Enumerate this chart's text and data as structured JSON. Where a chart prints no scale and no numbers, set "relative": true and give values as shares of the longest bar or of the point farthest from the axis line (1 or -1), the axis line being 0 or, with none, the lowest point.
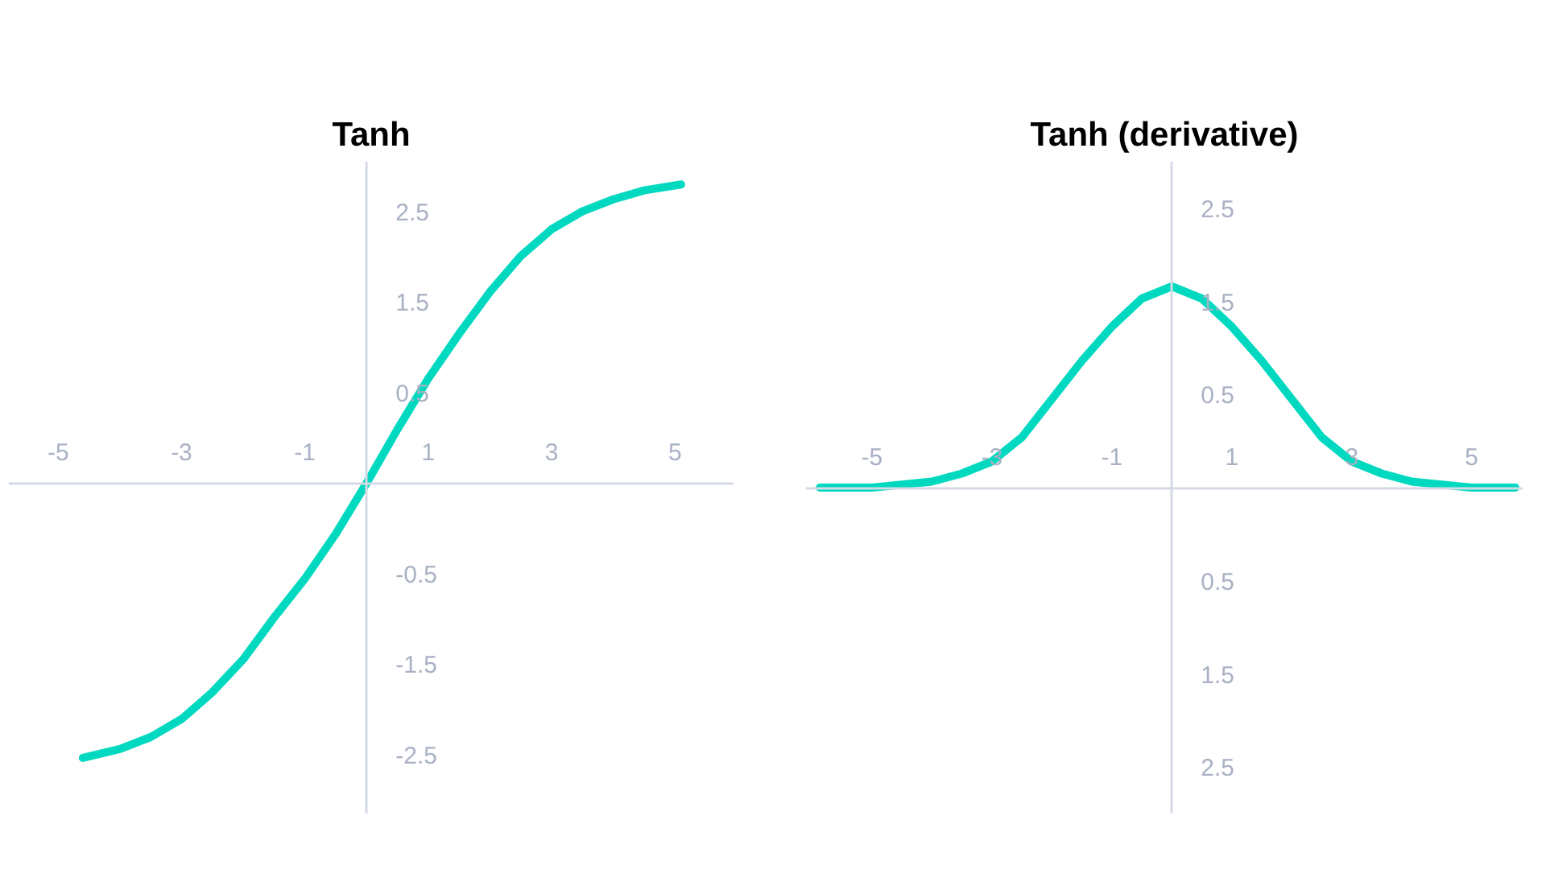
{
  "chart_data": [
    {
      "type": "line",
      "title": "Tanh",
      "relative": true,
      "xlim": [
        -5.8,
        5.95
      ],
      "xticks": [
        -5,
        -3,
        -1,
        1,
        3,
        5
      ],
      "annotations": [
        "2.5",
        "1.5",
        "0.5",
        "-0.5",
        "-1.5",
        "-2.5"
      ],
      "series": [
        {
          "color": "#00d9c0",
          "x": [
            -4.6,
            -4,
            -3.5,
            -3,
            -2.5,
            -2,
            -1.5,
            -1,
            -0.5,
            0,
            0.5,
            1,
            1.5,
            2,
            2.5,
            3,
            3.5,
            4,
            4.5,
            5.1
          ],
          "values": [
            -0.92,
            -0.89,
            -0.85,
            -0.79,
            -0.7,
            -0.59,
            -0.45,
            -0.32,
            -0.17,
            0,
            0.18,
            0.35,
            0.5,
            0.64,
            0.76,
            0.85,
            0.91,
            0.95,
            0.98,
            1
          ]
        }
      ]
    },
    {
      "type": "line",
      "title": "Tanh (derivative)",
      "relative": true,
      "xlim": [
        -6.1,
        5.85
      ],
      "xticks": [
        -5,
        -3,
        -1,
        1,
        3,
        5
      ],
      "annotations": [
        "2.5",
        "1.5",
        "0.5",
        "0.5",
        "1.5",
        "2.5"
      ],
      "series": [
        {
          "color": "#00d9c0",
          "x": [
            -5.87,
            -5,
            -4,
            -3.5,
            -3,
            -2.5,
            -2,
            -1.5,
            -1,
            -0.5,
            0,
            0.5,
            1,
            1.5,
            2,
            2.5,
            3,
            3.5,
            4,
            5,
            5.73
          ],
          "values": [
            0,
            0,
            0.03,
            0.07,
            0.13,
            0.25,
            0.44,
            0.63,
            0.8,
            0.94,
            1,
            0.94,
            0.8,
            0.63,
            0.44,
            0.25,
            0.13,
            0.07,
            0.03,
            0,
            0
          ]
        }
      ]
    }
  ]
}
